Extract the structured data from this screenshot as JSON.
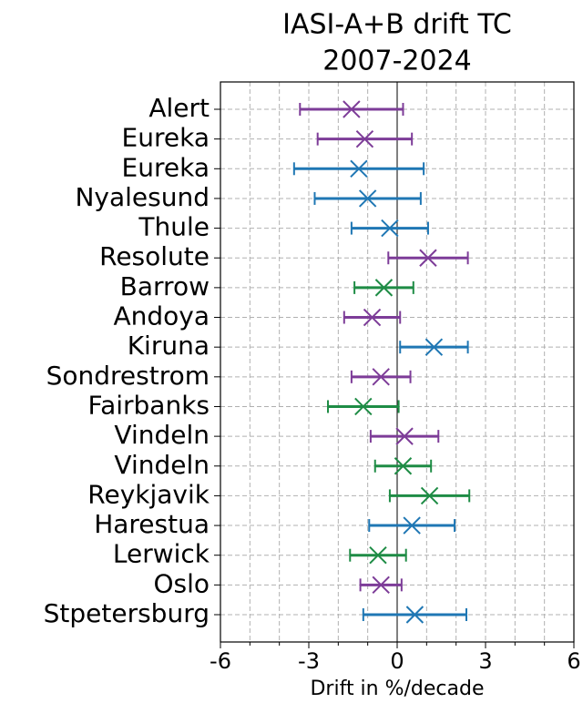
{
  "chart_data": {
    "type": "errorbar",
    "title": [
      "IASI-A+B drift TC",
      "2007-2024"
    ],
    "xlabel": "Drift in %/decade",
    "categories": [
      "Alert",
      "Eureka",
      "Eureka",
      "Nyalesund",
      "Thule",
      "Resolute",
      "Barrow",
      "Andoya",
      "Kiruna",
      "Sondrestrom",
      "Fairbanks",
      "Vindeln",
      "Vindeln",
      "Reykjavik",
      "Harestua",
      "Lerwick",
      "Oslo",
      "Stpetersburg"
    ],
    "values": [
      -1.55,
      -1.1,
      -1.3,
      -1.0,
      -0.25,
      1.05,
      -0.45,
      -0.85,
      1.25,
      -0.55,
      -1.15,
      0.25,
      0.2,
      1.1,
      0.5,
      -0.65,
      -0.55,
      0.6
    ],
    "errors": [
      1.75,
      1.6,
      2.2,
      1.8,
      1.3,
      1.35,
      1.0,
      0.95,
      1.15,
      1.0,
      1.2,
      1.15,
      0.95,
      1.35,
      1.45,
      0.95,
      0.7,
      1.75
    ],
    "colors": [
      "#7d3c98",
      "#7d3c98",
      "#1f77b4",
      "#1f77b4",
      "#1f77b4",
      "#7d3c98",
      "#1e8c45",
      "#7d3c98",
      "#1f77b4",
      "#7d3c98",
      "#1e8c45",
      "#7d3c98",
      "#1e8c45",
      "#1e8c45",
      "#1f77b4",
      "#1e8c45",
      "#7d3c98",
      "#1f77b4"
    ],
    "xlim": [
      -6,
      6
    ],
    "xticks": [
      -6,
      -3,
      0,
      3,
      6
    ],
    "xminorticks": [
      -5,
      -4,
      -2,
      -1,
      1,
      2,
      4,
      5
    ],
    "grid": true,
    "zeroline": true
  }
}
